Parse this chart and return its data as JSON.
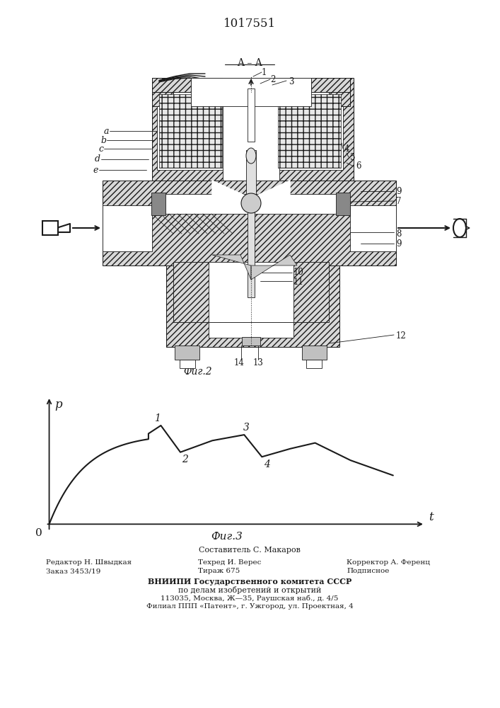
{
  "title": "1017551",
  "bg_color": "#ffffff",
  "line_color": "#1a1a1a",
  "text_color": "#1a1a1a",
  "hatch_color": "#1a1a1a",
  "footer_col1_line1": "Редактор Н. Швыдкая",
  "footer_col1_line2": "Заказ 3453/19",
  "footer_col2_line1": "Техред И. Верес",
  "footer_col2_line2": "Тираж 675",
  "footer_col3_line1": "Корректор А. Ференц",
  "footer_col3_line2": "Подписное",
  "footer_comp": "Составитель С. Макаров",
  "footer_vniiipi1": "ВНИИПИ Государственного комитета СССР",
  "footer_vniiipi2": "по делам изобретений и открытий",
  "footer_address1": "113035, Москва, Ж—35, Раушская наб., д. 4/5",
  "footer_address2": "Филиал ППП «Патент», г. Ужгород, ул. Проектная, 4"
}
